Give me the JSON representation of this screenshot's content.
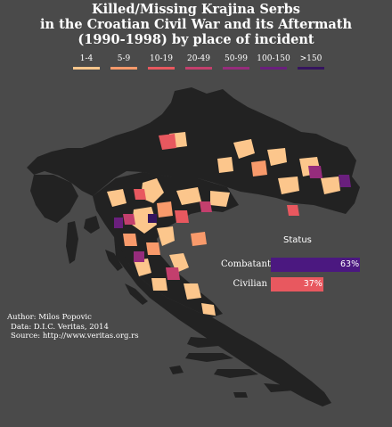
{
  "title_lines": [
    "Killed/Missing Krajina Serbs",
    "in the Croatian Civil War and its Aftermath",
    "(1990-1998) by place of incident"
  ],
  "legend": [
    {
      "label": "1-4",
      "color": "#fcc68c"
    },
    {
      "label": "5-9",
      "color": "#f89a6b"
    },
    {
      "label": "10-19",
      "color": "#e8585f"
    },
    {
      "label": "20-49",
      "color": "#c33f6d"
    },
    {
      "label": "50-99",
      "color": "#962c7c"
    },
    {
      "label": "100-150",
      "color": "#6a1f7d"
    },
    {
      "label": ">150",
      "color": "#35145e"
    }
  ],
  "status": {
    "title": "Status",
    "bars": [
      {
        "label": "Combatant",
        "value": 63,
        "value_label": "63%",
        "color": "#4b1880"
      },
      {
        "label": "Civilian",
        "value": 37,
        "value_label": "37%",
        "color": "#e8585f"
      }
    ]
  },
  "credits": [
    "Author: Milos Popovic",
    "Data: D.I.C. Veritas, 2014",
    "Source: http://www.veritas.org.rs"
  ],
  "colors": {
    "background": "#4a4a4a",
    "land": "#222222"
  }
}
